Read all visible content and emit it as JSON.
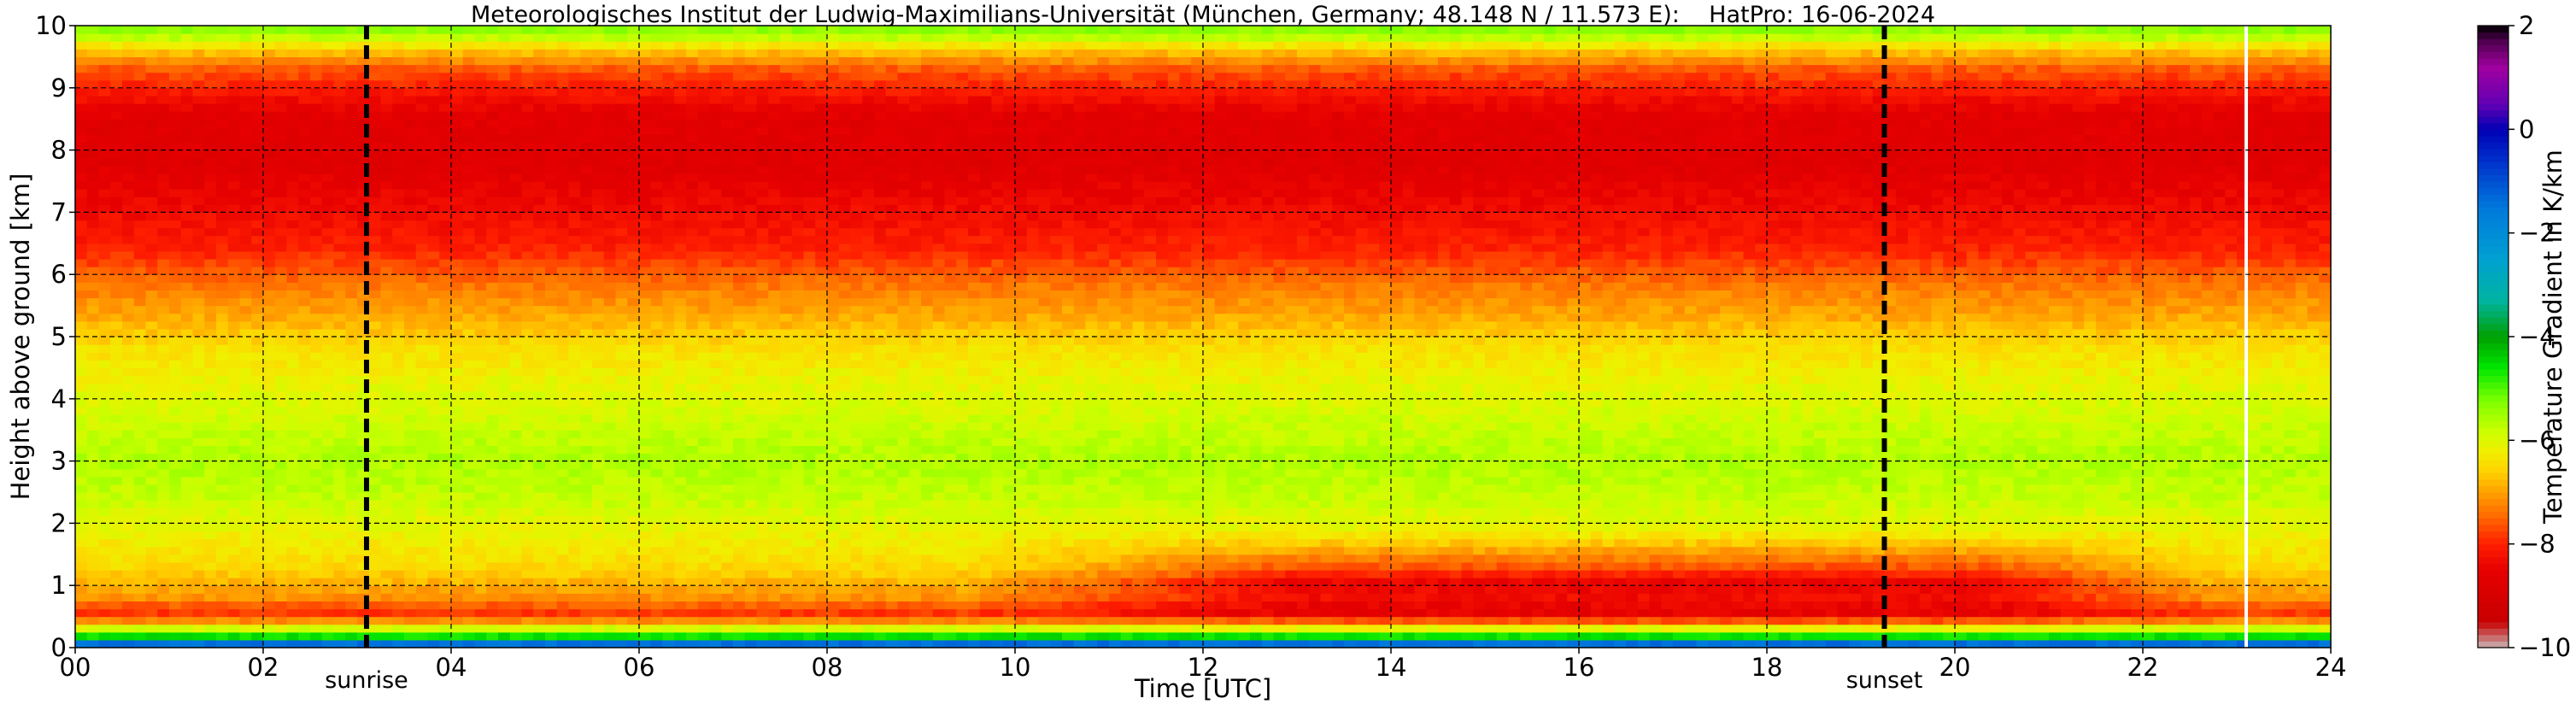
{
  "chart_data": {
    "type": "heatmap",
    "title": "Meteorologisches Institut der Ludwig-Maximilians-Universität (München, Germany; 48.148 N / 11.573 E):    HatPro: 16-06-2024",
    "xlabel": "Time [UTC]",
    "ylabel": "Height above ground [km]",
    "xlim": [
      0,
      24
    ],
    "ylim": [
      0,
      10
    ],
    "x_ticks": [
      "00",
      "02",
      "04",
      "06",
      "08",
      "10",
      "12",
      "14",
      "16",
      "18",
      "20",
      "22",
      "24"
    ],
    "y_ticks": [
      "0",
      "1",
      "2",
      "3",
      "4",
      "5",
      "6",
      "7",
      "8",
      "9",
      "10"
    ],
    "grid": true,
    "markers": [
      {
        "label": "sunrise",
        "x": 3.1
      },
      {
        "label": "sunset",
        "x": 19.25
      }
    ],
    "gap_line_x": 23.1,
    "colorbar": {
      "label": "Temperature Gradient in K/km",
      "range": [
        -10,
        2
      ],
      "ticks": [
        "−10",
        "−8",
        "−6",
        "−4",
        "−2",
        "0",
        "2"
      ],
      "stops": [
        {
          "v": -10.0,
          "c": "#c8b4b4"
        },
        {
          "v": -9.5,
          "c": "#c80000"
        },
        {
          "v": -8.5,
          "c": "#e60000"
        },
        {
          "v": -8.0,
          "c": "#ff1e00"
        },
        {
          "v": -7.5,
          "c": "#ff6400"
        },
        {
          "v": -7.0,
          "c": "#ffa000"
        },
        {
          "v": -6.6,
          "c": "#ffd200"
        },
        {
          "v": -6.2,
          "c": "#f0f000"
        },
        {
          "v": -5.8,
          "c": "#c8ff00"
        },
        {
          "v": -5.2,
          "c": "#78ff00"
        },
        {
          "v": -4.6,
          "c": "#00e600"
        },
        {
          "v": -4.0,
          "c": "#00a000"
        },
        {
          "v": -3.3,
          "c": "#00b4a0"
        },
        {
          "v": -2.5,
          "c": "#00a0d2"
        },
        {
          "v": -1.5,
          "c": "#0078dc"
        },
        {
          "v": -0.5,
          "c": "#0028c8"
        },
        {
          "v": 0.0,
          "c": "#0000b4"
        },
        {
          "v": 0.5,
          "c": "#6400b4"
        },
        {
          "v": 1.2,
          "c": "#a000a0"
        },
        {
          "v": 1.7,
          "c": "#500050"
        },
        {
          "v": 2.0,
          "c": "#000000"
        }
      ]
    },
    "profile": [
      {
        "h": 0.0,
        "v": -3.0
      },
      {
        "h": 0.05,
        "v": -1.0
      },
      {
        "h": 0.15,
        "v": -4.2
      },
      {
        "h": 0.3,
        "v": -5.8
      },
      {
        "h": 0.45,
        "v": -7.3
      },
      {
        "h": 0.6,
        "v": -8.0
      },
      {
        "h": 0.75,
        "v": -7.2
      },
      {
        "h": 1.0,
        "v": -6.9
      },
      {
        "h": 1.3,
        "v": -6.5
      },
      {
        "h": 1.8,
        "v": -6.2
      },
      {
        "h": 2.4,
        "v": -5.8
      },
      {
        "h": 3.0,
        "v": -5.6
      },
      {
        "h": 4.0,
        "v": -6.0
      },
      {
        "h": 4.8,
        "v": -6.4
      },
      {
        "h": 5.3,
        "v": -6.9
      },
      {
        "h": 5.8,
        "v": -7.3
      },
      {
        "h": 6.4,
        "v": -8.0
      },
      {
        "h": 7.0,
        "v": -8.3
      },
      {
        "h": 7.8,
        "v": -8.7
      },
      {
        "h": 8.6,
        "v": -8.6
      },
      {
        "h": 9.3,
        "v": -7.6
      },
      {
        "h": 9.6,
        "v": -6.7
      },
      {
        "h": 9.85,
        "v": -5.6
      },
      {
        "h": 10.0,
        "v": -5.2
      }
    ]
  }
}
